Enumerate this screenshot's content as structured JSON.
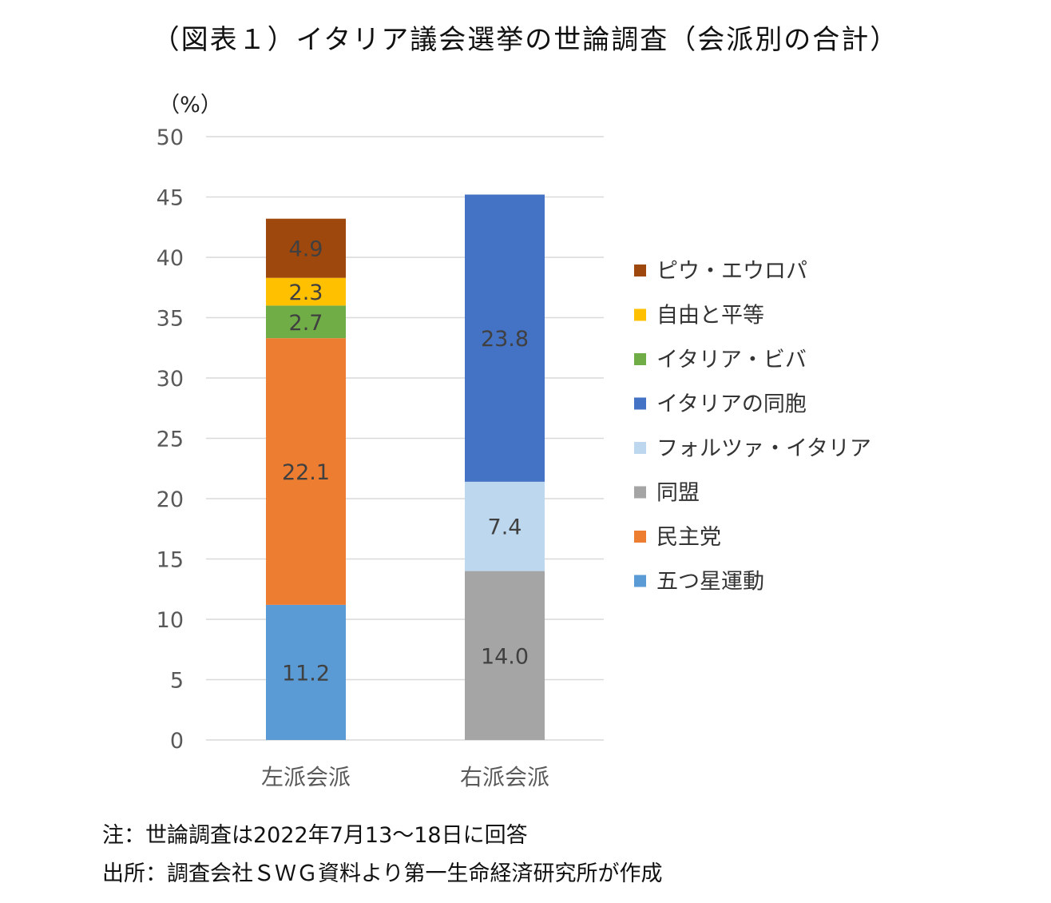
{
  "chart_data": {
    "type": "stacked-bar",
    "title": "（図表１）イタリア議会選挙の世論調査（会派別の合計）",
    "unit_label": "（%）",
    "ylim": [
      0,
      50
    ],
    "yticks": [
      0,
      5,
      10,
      15,
      20,
      25,
      30,
      35,
      40,
      45,
      50
    ],
    "grid": true,
    "legend_position": "right",
    "categories": [
      "左派会派",
      "右派会派"
    ],
    "series": [
      {
        "name": "五つ星運動",
        "color": "#5B9BD5",
        "values": [
          11.2,
          null
        ]
      },
      {
        "name": "民主党",
        "color": "#ED7D31",
        "values": [
          22.1,
          null
        ]
      },
      {
        "name": "同盟",
        "color": "#A5A5A5",
        "values": [
          null,
          14.0
        ]
      },
      {
        "name": "フォルツァ・イタリア",
        "color": "#BDD7EE",
        "values": [
          null,
          7.4
        ]
      },
      {
        "name": "イタリアの同胞",
        "color": "#4472C4",
        "values": [
          null,
          23.8
        ]
      },
      {
        "name": "イタリア・ビバ",
        "color": "#70AD47",
        "values": [
          2.7,
          null
        ]
      },
      {
        "name": "自由と平等",
        "color": "#FFC000",
        "values": [
          2.3,
          null
        ]
      },
      {
        "name": "ピウ・エウロパ",
        "color": "#9E480E",
        "values": [
          4.9,
          null
        ]
      }
    ],
    "legend_order": [
      "ピウ・エウロパ",
      "自由と平等",
      "イタリア・ビバ",
      "イタリアの同胞",
      "フォルツァ・イタリア",
      "同盟",
      "民主党",
      "五つ星運動"
    ]
  },
  "notes": {
    "note": "注：世論調査は2022年7月13〜18日に回答",
    "source": "出所：調査会社ＳＷＧ資料より第一生命経済研究所が作成"
  }
}
